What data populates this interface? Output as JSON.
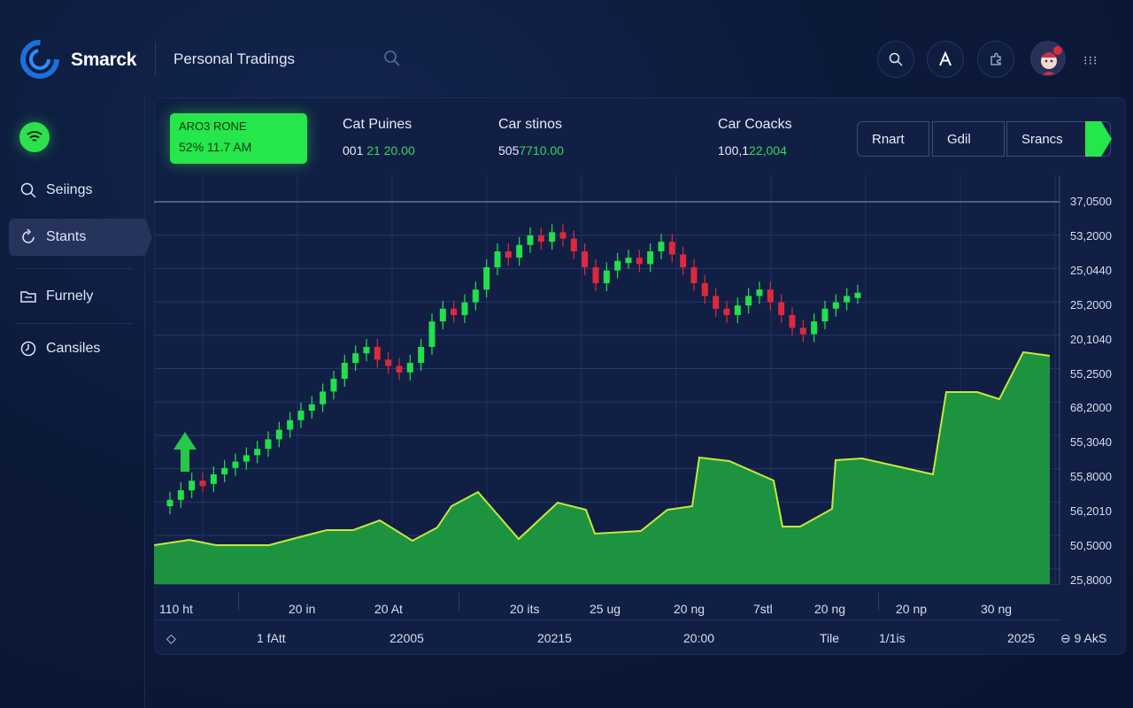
{
  "header": {
    "brand": "Smarck",
    "app_title": "Personal Tradings",
    "more": "⁝⁝⁝"
  },
  "sidebar": {
    "items": [
      {
        "label": "Seiings",
        "icon": "search-icon"
      },
      {
        "label": "Stants",
        "icon": "refresh-icon",
        "active": true
      },
      {
        "label": "Furnely",
        "icon": "folder-icon"
      },
      {
        "label": "Cansiles",
        "icon": "clock-icon"
      }
    ]
  },
  "summary": {
    "highlight": {
      "title": "ARO3 RONE",
      "value": "52% 11.7 AM"
    },
    "stats": [
      {
        "label": "Cat Puines",
        "value_a": "001",
        "value_b": "21 20.00"
      },
      {
        "label": "Car stinos",
        "value_a": "505",
        "value_b": "7710.00"
      },
      {
        "label": "Car Coacks",
        "value_a": "100,1",
        "value_b": "22,004"
      }
    ]
  },
  "tabs": [
    "Rnart",
    "Gdil",
    "Srancs"
  ],
  "chart_data": {
    "type": "candlestick+area",
    "y_ticks": [
      "37,0500",
      "53,2000",
      "25,0440",
      "25,2000",
      "20,1040",
      "55,2500",
      "68,2000",
      "55,3040",
      "55,8000",
      "56,2010",
      "50,5000",
      "25,8000"
    ],
    "x_ticks": [
      "110 ht",
      "20 in",
      "20 At",
      "20 its",
      "25 ug",
      "20 ng",
      "7stl",
      "20 ng",
      "20 np",
      "30 ng"
    ],
    "candles_close_trend": [
      12,
      15,
      18,
      17,
      20,
      22,
      24,
      26,
      28,
      31,
      34,
      37,
      40,
      42,
      46,
      50,
      55,
      58,
      60,
      56,
      54,
      52,
      55,
      60,
      68,
      72,
      70,
      74,
      78,
      85,
      90,
      88,
      92,
      95,
      93,
      96,
      94,
      90,
      85,
      80,
      84,
      87,
      88,
      86,
      90,
      93,
      89,
      85,
      80,
      76,
      72,
      70,
      73,
      76,
      78,
      74,
      70,
      66,
      64,
      68,
      72,
      74,
      76,
      77
    ]
  },
  "footer": {
    "items": [
      "◇",
      "1 fAtt",
      "22005",
      "20215",
      "20:00",
      "Tile",
      "1/1is",
      "2025",
      "⊖ 9 AkS"
    ]
  }
}
